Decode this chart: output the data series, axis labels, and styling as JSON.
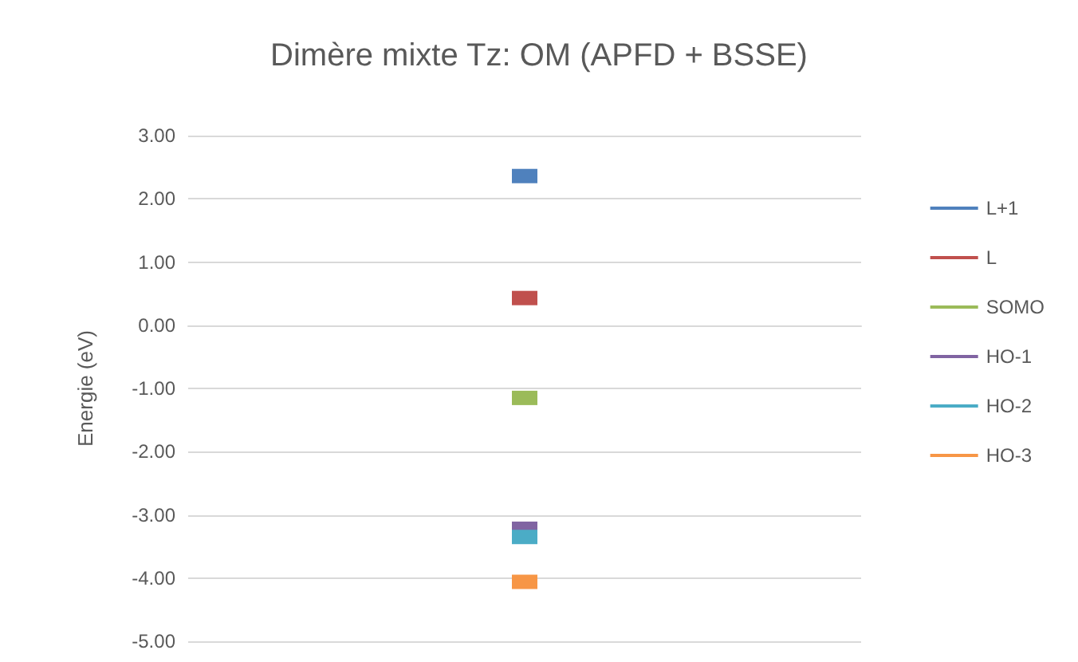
{
  "chart_data": {
    "type": "line",
    "title": "Dimère mixte Tz: OM (APFD + BSSE)",
    "ylabel": "Energie (eV)",
    "categories": [
      null
    ],
    "series": [
      {
        "name": "L+1",
        "color": "#4f81bd",
        "values": [
          2.36
        ]
      },
      {
        "name": "L",
        "color": "#c0504d",
        "values": [
          0.43
        ]
      },
      {
        "name": "SOMO",
        "color": "#9bbb59",
        "values": [
          -1.15
        ]
      },
      {
        "name": "HO-1",
        "color": "#8064a2",
        "values": [
          -3.22
        ]
      },
      {
        "name": "HO-2",
        "color": "#4bacc6",
        "values": [
          -3.35
        ]
      },
      {
        "name": "HO-3",
        "color": "#f79646",
        "values": [
          -4.06
        ]
      }
    ],
    "ylim": [
      -5,
      3
    ],
    "yticks": [
      {
        "value": -5,
        "label": "-5.00"
      },
      {
        "value": -4,
        "label": "-4.00"
      },
      {
        "value": -3,
        "label": "-3.00"
      },
      {
        "value": -2,
        "label": "-2.00"
      },
      {
        "value": -1,
        "label": "-1.00"
      },
      {
        "value": 0,
        "label": "0.00"
      },
      {
        "value": 1,
        "label": "1.00"
      },
      {
        "value": 2,
        "label": "2.00"
      },
      {
        "value": 3,
        "label": "3.00"
      }
    ],
    "grid": "y",
    "legend": "right",
    "marker": "square"
  }
}
